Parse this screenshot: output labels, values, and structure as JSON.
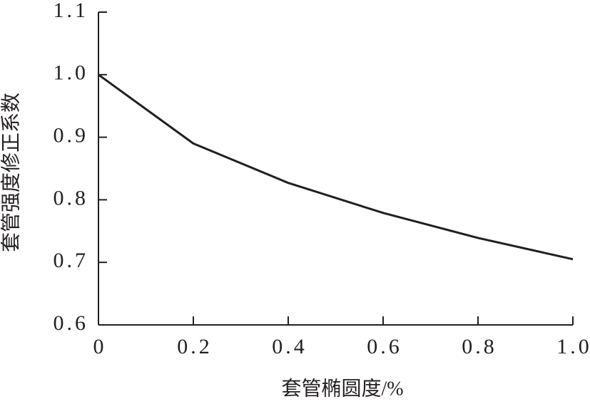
{
  "chart_data": {
    "type": "line",
    "xlabel": "套管椭圆度/%",
    "ylabel": "套管强度修正系数",
    "x": [
      0,
      0.2,
      0.4,
      0.6,
      0.8,
      1.0
    ],
    "series": [
      {
        "color": "#231f20",
        "values": [
          1.0,
          0.89,
          0.827,
          0.779,
          0.739,
          0.705
        ]
      }
    ],
    "xlim": [
      0,
      1
    ],
    "ylim": [
      0.6,
      1.1
    ],
    "xticks": [
      0,
      0.2,
      0.4,
      0.6,
      0.8,
      {
        "value": 1,
        "label": "1.0"
      }
    ],
    "yticks": [
      0.6,
      0.7,
      0.8,
      0.9,
      {
        "value": 1,
        "label": "1.0"
      },
      1.1
    ]
  }
}
